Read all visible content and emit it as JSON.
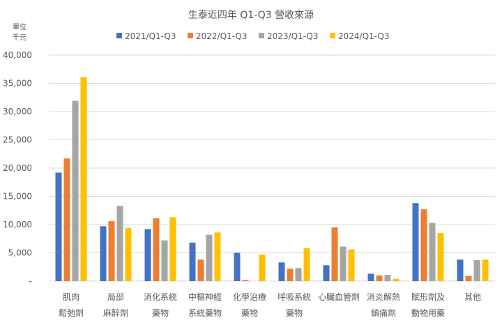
{
  "chart_data": {
    "type": "bar",
    "title": "生泰近四年 Q1-Q3 營收來源",
    "ylabel": "單位\n千元",
    "ylabel_lines": [
      "單位",
      "千元"
    ],
    "xlabel": "",
    "ylim": [
      0,
      40000
    ],
    "yticks": [
      "-",
      "5,000",
      "10,000",
      "15,000",
      "20,000",
      "25,000",
      "30,000",
      "35,000",
      "40,000"
    ],
    "grid": true,
    "legend_position": "top",
    "categories": [
      [
        "肌肉",
        "鬆弛劑"
      ],
      [
        "局部",
        "麻醉劑"
      ],
      [
        "消化系統",
        "藥物"
      ],
      [
        "中樞神經",
        "系統藥物"
      ],
      [
        "化學治療",
        "藥物"
      ],
      [
        "呼吸系統",
        "藥物"
      ],
      [
        "心臟血管劑",
        ""
      ],
      [
        "消炎解熱",
        "鎮痛劑"
      ],
      [
        "賦形劑及",
        "動物用藥"
      ],
      [
        "其他",
        ""
      ]
    ],
    "series": [
      {
        "name": "2021/Q1-Q3",
        "color": "#4472C4",
        "values": [
          19200,
          9700,
          9200,
          6800,
          5000,
          3300,
          2800,
          1300,
          13800,
          3800
        ]
      },
      {
        "name": "2022/Q1-Q3",
        "color": "#ED7D31",
        "values": [
          21700,
          10600,
          11100,
          3800,
          200,
          2200,
          9500,
          1000,
          12700,
          900
        ]
      },
      {
        "name": "2023/Q1-Q3",
        "color": "#A5A5A5",
        "values": [
          31900,
          13300,
          7200,
          8200,
          0,
          2300,
          6100,
          1100,
          10300,
          3700
        ]
      },
      {
        "name": "2024/Q1-Q3",
        "color": "#FFC000",
        "values": [
          36100,
          9400,
          11300,
          8600,
          4700,
          5800,
          5600,
          400,
          8500,
          3800
        ]
      }
    ]
  }
}
